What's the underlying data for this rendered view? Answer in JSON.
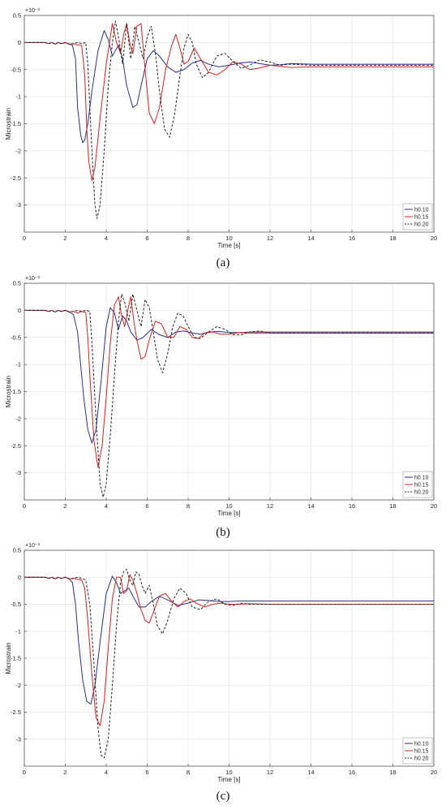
{
  "chart_data": [
    {
      "panel_label": "(a)",
      "type": "line",
      "xlabel": "Time [s]",
      "ylabel": "Microstrain",
      "exponent_label": "×10⁻³",
      "xlim": [
        0,
        20
      ],
      "ylim": [
        -3.5,
        0.5
      ],
      "xticks": [
        0,
        2,
        4,
        6,
        8,
        10,
        12,
        14,
        16,
        18,
        20
      ],
      "yticks": [
        0.5,
        0,
        -0.5,
        -1,
        -1.5,
        -2,
        -2.5,
        -3
      ],
      "ytick_labels": [
        "0.5",
        "0",
        "-0.5",
        "-1",
        "-1.5",
        "-2",
        "-2.5",
        "-3"
      ],
      "grid": true,
      "legend_position": "bottom-right",
      "series": [
        {
          "name": "h0.10",
          "color": "#2b2f8a",
          "dash": "solid",
          "x": [
            0,
            1.0,
            1.2,
            1.35,
            1.5,
            1.65,
            1.8,
            2.0,
            2.2,
            2.35,
            2.5,
            2.6,
            2.75,
            2.85,
            2.95,
            3.1,
            3.3,
            3.6,
            3.9,
            4.1,
            4.3,
            4.6,
            4.8,
            5.0,
            5.3,
            5.5,
            5.7,
            6.0,
            6.3,
            6.6,
            7.0,
            7.4,
            7.8,
            8.2,
            8.6,
            9.0,
            9.5,
            10.0,
            10.5,
            11.0,
            11.5,
            12.0,
            12.5,
            13.0,
            14.0,
            15.0,
            16.0,
            18.0,
            20.0
          ],
          "y": [
            0.0,
            0.0,
            -0.02,
            0.0,
            -0.03,
            0.0,
            -0.02,
            0.0,
            -0.03,
            -0.05,
            -0.3,
            -1.2,
            -1.7,
            -1.85,
            -1.8,
            -1.5,
            -0.9,
            -0.15,
            0.22,
            0.05,
            -0.25,
            -0.05,
            -0.3,
            -0.8,
            -1.2,
            -1.15,
            -0.8,
            -0.3,
            -0.15,
            -0.25,
            -0.45,
            -0.55,
            -0.5,
            -0.38,
            -0.33,
            -0.4,
            -0.45,
            -0.42,
            -0.38,
            -0.36,
            -0.39,
            -0.42,
            -0.41,
            -0.39,
            -0.4,
            -0.4,
            -0.4,
            -0.4,
            -0.4
          ]
        },
        {
          "name": "h0.15",
          "color": "#d62020",
          "dash": "solid",
          "x": [
            0,
            1.0,
            1.2,
            1.35,
            1.5,
            1.65,
            1.8,
            2.0,
            2.2,
            2.4,
            2.6,
            2.8,
            2.95,
            3.05,
            3.15,
            3.3,
            3.45,
            3.7,
            4.0,
            4.3,
            4.5,
            4.7,
            4.85,
            5.0,
            5.15,
            5.3,
            5.5,
            5.7,
            5.9,
            6.1,
            6.35,
            6.6,
            6.9,
            7.2,
            7.4,
            7.6,
            7.8,
            8.0,
            8.3,
            8.6,
            9.0,
            9.4,
            9.8,
            10.2,
            10.6,
            11.0,
            11.5,
            12.0,
            12.5,
            13.0,
            14.0,
            16.0,
            18.0,
            20.0
          ],
          "y": [
            0.0,
            0.0,
            -0.02,
            0.0,
            -0.03,
            0.0,
            -0.02,
            0.0,
            -0.03,
            -0.02,
            -0.05,
            -0.05,
            -0.6,
            -1.6,
            -2.2,
            -2.55,
            -2.3,
            -1.4,
            -0.4,
            0.35,
            0.0,
            -0.2,
            0.15,
            0.35,
            0.0,
            -0.2,
            0.3,
            0.35,
            -0.5,
            -1.3,
            -1.5,
            -1.2,
            -0.5,
            -0.05,
            0.15,
            -0.1,
            -0.4,
            -0.35,
            -0.1,
            -0.3,
            -0.55,
            -0.6,
            -0.5,
            -0.35,
            -0.4,
            -0.5,
            -0.47,
            -0.42,
            -0.44,
            -0.46,
            -0.45,
            -0.45,
            -0.45,
            -0.45
          ]
        },
        {
          "name": "h0.20",
          "color": "#222222",
          "dash": "dashed",
          "x": [
            0,
            1.0,
            1.2,
            1.35,
            1.5,
            1.65,
            1.8,
            2.0,
            2.2,
            2.4,
            2.6,
            2.8,
            3.0,
            3.1,
            3.3,
            3.45,
            3.55,
            3.7,
            3.9,
            4.1,
            4.3,
            4.45,
            4.6,
            4.8,
            5.0,
            5.2,
            5.4,
            5.6,
            5.8,
            6.0,
            6.2,
            6.4,
            6.6,
            6.85,
            7.1,
            7.35,
            7.6,
            7.8,
            8.0,
            8.2,
            8.4,
            8.7,
            9.0,
            9.4,
            9.8,
            10.2,
            10.6,
            11.0,
            11.5,
            12.0,
            12.5,
            13.0,
            14.0,
            16.0,
            18.0,
            20.0
          ],
          "y": [
            0.0,
            0.0,
            -0.02,
            0.0,
            -0.03,
            0.0,
            -0.02,
            0.0,
            -0.03,
            -0.02,
            0.0,
            -0.02,
            0.0,
            -0.4,
            -2.0,
            -3.0,
            -3.25,
            -3.0,
            -2.0,
            -0.8,
            0.0,
            0.4,
            0.1,
            -0.4,
            0.35,
            -0.3,
            0.3,
            0.0,
            -0.3,
            0.1,
            0.3,
            -0.2,
            -0.9,
            -1.6,
            -1.75,
            -1.3,
            -0.6,
            -0.1,
            0.15,
            0.0,
            -0.4,
            -0.65,
            -0.55,
            -0.25,
            -0.2,
            -0.35,
            -0.48,
            -0.42,
            -0.32,
            -0.36,
            -0.42,
            -0.4,
            -0.42,
            -0.42,
            -0.42,
            -0.42
          ]
        }
      ]
    },
    {
      "panel_label": "(b)",
      "type": "line",
      "xlabel": "Time [s]",
      "ylabel": "Microstrain",
      "exponent_label": "×10⁻³",
      "xlim": [
        0,
        20
      ],
      "ylim": [
        -3.5,
        0.5
      ],
      "xticks": [
        0,
        2,
        4,
        6,
        8,
        10,
        12,
        14,
        16,
        18,
        20
      ],
      "yticks": [
        0.5,
        0,
        -0.5,
        -1,
        -1.5,
        -2,
        -2.5,
        -3
      ],
      "ytick_labels": [
        "0.5",
        "0",
        "-0.5",
        "-1",
        "-1.5",
        "-2",
        "-2.5",
        "-3"
      ],
      "grid": true,
      "legend_position": "bottom-right",
      "series": [
        {
          "name": "h0.10",
          "color": "#2b2f8a",
          "dash": "solid",
          "x": [
            0,
            1.0,
            1.2,
            1.35,
            1.5,
            1.65,
            1.8,
            2.0,
            2.2,
            2.4,
            2.6,
            2.75,
            2.9,
            3.1,
            3.3,
            3.5,
            3.75,
            4.0,
            4.2,
            4.4,
            4.6,
            4.8,
            5.0,
            5.2,
            5.5,
            5.8,
            6.2,
            6.6,
            7.0,
            7.4,
            7.8,
            8.2,
            8.6,
            9.0,
            9.5,
            10.0,
            10.5,
            11.0,
            12.0,
            13.0,
            14.0,
            16.0,
            18.0,
            20.0
          ],
          "y": [
            0.0,
            0.0,
            -0.02,
            0.0,
            -0.03,
            0.0,
            -0.02,
            0.0,
            -0.03,
            -0.08,
            -0.4,
            -1.0,
            -1.6,
            -2.2,
            -2.45,
            -2.2,
            -1.3,
            -0.3,
            0.05,
            -0.05,
            -0.35,
            -0.1,
            -0.2,
            -0.4,
            -0.55,
            -0.5,
            -0.35,
            -0.45,
            -0.5,
            -0.4,
            -0.38,
            -0.42,
            -0.44,
            -0.4,
            -0.39,
            -0.41,
            -0.41,
            -0.4,
            -0.4,
            -0.4,
            -0.4,
            -0.4,
            -0.4,
            -0.4
          ]
        },
        {
          "name": "h0.15",
          "color": "#d62020",
          "dash": "solid",
          "x": [
            0,
            1.0,
            1.2,
            1.35,
            1.5,
            1.65,
            1.8,
            2.0,
            2.2,
            2.4,
            2.6,
            2.8,
            3.0,
            3.1,
            3.2,
            3.4,
            3.6,
            3.8,
            4.0,
            4.2,
            4.4,
            4.6,
            4.75,
            4.9,
            5.05,
            5.2,
            5.35,
            5.5,
            5.7,
            5.9,
            6.1,
            6.4,
            6.7,
            7.0,
            7.3,
            7.6,
            7.9,
            8.2,
            8.5,
            8.8,
            9.2,
            9.6,
            10.0,
            10.5,
            11.0,
            12.0,
            13.0,
            14.0,
            16.0,
            18.0,
            20.0
          ],
          "y": [
            0.0,
            0.0,
            -0.02,
            0.0,
            -0.03,
            0.0,
            -0.02,
            0.0,
            -0.03,
            -0.02,
            -0.05,
            -0.02,
            -0.04,
            -0.5,
            -1.2,
            -2.4,
            -2.9,
            -2.5,
            -1.6,
            -0.6,
            0.1,
            0.25,
            -0.1,
            -0.3,
            0.0,
            0.25,
            -0.2,
            -0.55,
            -0.9,
            -0.85,
            -0.55,
            -0.2,
            -0.25,
            -0.5,
            -0.5,
            -0.3,
            -0.35,
            -0.5,
            -0.52,
            -0.42,
            -0.4,
            -0.44,
            -0.44,
            -0.41,
            -0.42,
            -0.42,
            -0.42,
            -0.42,
            -0.42,
            -0.42,
            -0.42
          ]
        },
        {
          "name": "h0.20",
          "color": "#222222",
          "dash": "dashed",
          "x": [
            0,
            1.0,
            1.2,
            1.35,
            1.5,
            1.65,
            1.8,
            2.0,
            2.2,
            2.4,
            2.6,
            2.8,
            3.0,
            3.2,
            3.3,
            3.5,
            3.7,
            3.85,
            4.0,
            4.2,
            4.4,
            4.6,
            4.75,
            4.9,
            5.1,
            5.3,
            5.5,
            5.7,
            5.9,
            6.1,
            6.3,
            6.5,
            6.75,
            7.0,
            7.25,
            7.5,
            7.75,
            8.0,
            8.3,
            8.6,
            9.0,
            9.4,
            9.8,
            10.2,
            10.6,
            11.0,
            11.5,
            12.0,
            13.0,
            14.0,
            16.0,
            18.0,
            20.0
          ],
          "y": [
            0.0,
            0.0,
            -0.02,
            0.0,
            -0.03,
            0.0,
            -0.02,
            0.0,
            -0.03,
            -0.02,
            0.0,
            -0.02,
            0.0,
            -0.02,
            -0.6,
            -2.0,
            -3.2,
            -3.45,
            -3.2,
            -2.3,
            -1.2,
            -0.2,
            0.3,
            0.15,
            -0.2,
            0.3,
            0.0,
            -0.3,
            0.2,
            0.05,
            -0.4,
            -0.9,
            -1.15,
            -0.8,
            -0.3,
            -0.05,
            -0.1,
            -0.3,
            -0.5,
            -0.52,
            -0.4,
            -0.3,
            -0.35,
            -0.45,
            -0.45,
            -0.4,
            -0.38,
            -0.42,
            -0.42,
            -0.42,
            -0.42,
            -0.42,
            -0.42
          ]
        }
      ]
    },
    {
      "panel_label": "(c)",
      "type": "line",
      "xlabel": "Time [s]",
      "ylabel": "Microstrain",
      "exponent_label": "×10⁻³",
      "xlim": [
        0,
        20
      ],
      "ylim": [
        -3.5,
        0.5
      ],
      "xticks": [
        0,
        2,
        4,
        6,
        8,
        10,
        12,
        14,
        16,
        18,
        20
      ],
      "yticks": [
        0.5,
        0,
        -0.5,
        -1,
        -1.5,
        -2,
        -2.5,
        -3
      ],
      "ytick_labels": [
        "0.5",
        "0",
        "-0.5",
        "-1",
        "-1.5",
        "-2",
        "-2.5",
        "-3"
      ],
      "grid": true,
      "legend_position": "bottom-right",
      "series": [
        {
          "name": "h0.10",
          "color": "#2b2f8a",
          "dash": "solid",
          "x": [
            0,
            1.0,
            1.2,
            1.35,
            1.5,
            1.65,
            1.8,
            2.0,
            2.2,
            2.35,
            2.5,
            2.65,
            2.85,
            3.05,
            3.25,
            3.45,
            3.7,
            4.0,
            4.3,
            4.5,
            4.7,
            4.9,
            5.1,
            5.3,
            5.6,
            5.9,
            6.2,
            6.6,
            7.0,
            7.5,
            8.0,
            8.5,
            9.0,
            9.5,
            10.0,
            10.5,
            11.0,
            12.0,
            14.0,
            16.0,
            18.0,
            20.0
          ],
          "y": [
            0.0,
            0.0,
            -0.02,
            0.0,
            -0.03,
            0.0,
            -0.02,
            0.0,
            -0.03,
            -0.1,
            -0.5,
            -1.2,
            -1.9,
            -2.3,
            -2.35,
            -2.0,
            -1.2,
            -0.3,
            0.02,
            -0.1,
            -0.3,
            -0.25,
            -0.2,
            -0.35,
            -0.55,
            -0.55,
            -0.45,
            -0.35,
            -0.42,
            -0.52,
            -0.48,
            -0.42,
            -0.43,
            -0.45,
            -0.45,
            -0.44,
            -0.44,
            -0.44,
            -0.44,
            -0.44,
            -0.44,
            -0.44
          ]
        },
        {
          "name": "h0.15",
          "color": "#d62020",
          "dash": "solid",
          "x": [
            0,
            1.0,
            1.2,
            1.35,
            1.5,
            1.65,
            1.8,
            2.0,
            2.2,
            2.4,
            2.6,
            2.8,
            2.95,
            3.1,
            3.3,
            3.5,
            3.7,
            3.9,
            4.1,
            4.3,
            4.5,
            4.7,
            4.85,
            5.0,
            5.15,
            5.3,
            5.5,
            5.7,
            5.9,
            6.1,
            6.35,
            6.6,
            6.9,
            7.2,
            7.5,
            7.8,
            8.1,
            8.4,
            8.8,
            9.2,
            9.6,
            10.0,
            10.5,
            11.0,
            12.0,
            14.0,
            16.0,
            18.0,
            20.0
          ],
          "y": [
            0.0,
            0.0,
            -0.02,
            0.0,
            -0.03,
            0.0,
            -0.02,
            0.0,
            -0.03,
            -0.02,
            -0.04,
            -0.05,
            -0.2,
            -0.8,
            -1.8,
            -2.6,
            -2.75,
            -2.3,
            -1.3,
            -0.4,
            0.0,
            0.0,
            -0.3,
            -0.25,
            0.05,
            -0.05,
            -0.3,
            -0.6,
            -0.8,
            -0.85,
            -0.6,
            -0.35,
            -0.3,
            -0.45,
            -0.55,
            -0.45,
            -0.4,
            -0.48,
            -0.55,
            -0.5,
            -0.48,
            -0.5,
            -0.5,
            -0.49,
            -0.5,
            -0.5,
            -0.5,
            -0.5,
            -0.5
          ]
        },
        {
          "name": "h0.20",
          "color": "#222222",
          "dash": "dashed",
          "x": [
            0,
            1.0,
            1.2,
            1.35,
            1.5,
            1.65,
            1.8,
            2.0,
            2.2,
            2.4,
            2.6,
            2.8,
            3.0,
            3.2,
            3.4,
            3.6,
            3.75,
            3.9,
            4.1,
            4.3,
            4.5,
            4.7,
            4.85,
            5.0,
            5.15,
            5.3,
            5.45,
            5.6,
            5.75,
            5.9,
            6.1,
            6.3,
            6.5,
            6.75,
            7.0,
            7.3,
            7.6,
            7.9,
            8.2,
            8.6,
            9.0,
            9.4,
            9.8,
            10.2,
            10.6,
            11.0,
            12.0,
            14.0,
            16.0,
            18.0,
            20.0
          ],
          "y": [
            0.0,
            0.0,
            -0.02,
            0.0,
            -0.03,
            0.0,
            -0.02,
            0.0,
            -0.03,
            -0.02,
            0.0,
            -0.02,
            -0.05,
            -0.5,
            -1.6,
            -2.8,
            -3.3,
            -3.35,
            -3.0,
            -2.0,
            -0.9,
            -0.1,
            0.1,
            0.15,
            -0.05,
            -0.15,
            0.1,
            0.05,
            -0.15,
            -0.3,
            -0.15,
            -0.5,
            -0.9,
            -1.05,
            -0.8,
            -0.4,
            -0.2,
            -0.3,
            -0.55,
            -0.6,
            -0.45,
            -0.4,
            -0.5,
            -0.52,
            -0.48,
            -0.5,
            -0.5,
            -0.5,
            -0.5,
            -0.5,
            -0.5
          ]
        }
      ]
    }
  ]
}
